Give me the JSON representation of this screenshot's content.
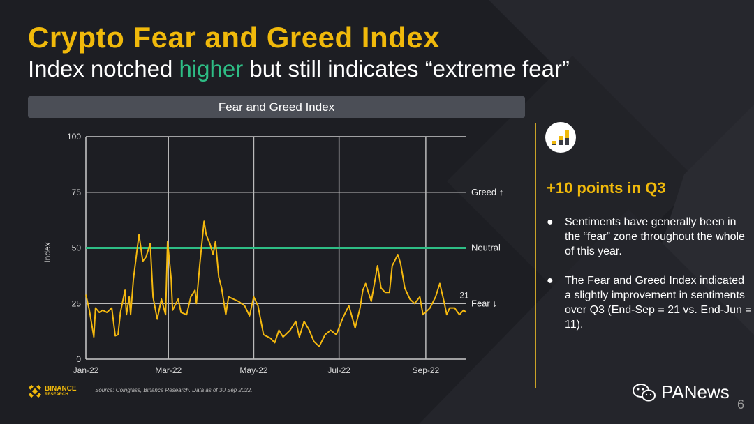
{
  "header": {
    "title": "Crypto Fear and Greed Index",
    "subtitle_pre": "Index notched ",
    "subtitle_hl": "higher",
    "subtitle_post": " but still indicates “extreme fear”"
  },
  "chart_header": "Fear and Greed Index",
  "sidebar": {
    "kpi": "+10 points in Q3",
    "bullets": [
      "Sentiments have generally been in the “fear” zone throughout the whole of this year.",
      "The Fear and Greed Index indicated a slightly improvement in sentiments over Q3 (End-Sep = 21 vs. End-Jun = 11)."
    ],
    "icon": "bar-chart-icon"
  },
  "footer": {
    "source": "Source: Coinglass, Binance Research. Data as of 30 Sep 2022.",
    "logo_top": "BINANCE",
    "logo_bottom": "RESEARCH",
    "watermark": "PANews",
    "page": "6"
  },
  "colors": {
    "accent": "#f0b90b",
    "green": "#2ebd85",
    "line": "#f5b90f"
  },
  "chart_data": {
    "type": "line",
    "title": "Fear and Greed Index",
    "xlabel": "",
    "ylabel": "Index",
    "ylim": [
      0,
      100
    ],
    "yticks": [
      "0",
      "25",
      "50",
      "75",
      "100"
    ],
    "xlim_days": [
      0,
      272
    ],
    "xticks": [
      {
        "label": "Jan-22",
        "day": 0
      },
      {
        "label": "Mar-22",
        "day": 59
      },
      {
        "label": "May-22",
        "day": 120
      },
      {
        "label": "Jul-22",
        "day": 181
      },
      {
        "label": "Sep-22",
        "day": 243
      }
    ],
    "reference_lines": [
      {
        "value": 75,
        "label": "Greed ↑"
      },
      {
        "value": 50,
        "label": "Neutral"
      },
      {
        "value": 25,
        "label": "Fear ↓"
      }
    ],
    "end_label": "21",
    "series": [
      {
        "name": "Fear and Greed Index",
        "points": [
          [
            0,
            29
          ],
          [
            2.5,
            22
          ],
          [
            5.7,
            10
          ],
          [
            6.9,
            23
          ],
          [
            9.6,
            21
          ],
          [
            12,
            22
          ],
          [
            15,
            21
          ],
          [
            18.5,
            23
          ],
          [
            21,
            10.5
          ],
          [
            23,
            11
          ],
          [
            24.7,
            21
          ],
          [
            28,
            31
          ],
          [
            29,
            20
          ],
          [
            31,
            28
          ],
          [
            32,
            20
          ],
          [
            34,
            36
          ],
          [
            38,
            56
          ],
          [
            40.7,
            44
          ],
          [
            43,
            46
          ],
          [
            46,
            52
          ],
          [
            48,
            28
          ],
          [
            51,
            18
          ],
          [
            54,
            27
          ],
          [
            57,
            20
          ],
          [
            58.4,
            53
          ],
          [
            61,
            36
          ],
          [
            62,
            22
          ],
          [
            66,
            27
          ],
          [
            68,
            21
          ],
          [
            72,
            20
          ],
          [
            75,
            28
          ],
          [
            78,
            31
          ],
          [
            79,
            25
          ],
          [
            81.5,
            43
          ],
          [
            84.5,
            62
          ],
          [
            86,
            56
          ],
          [
            88.6,
            52
          ],
          [
            91,
            47
          ],
          [
            92.7,
            53
          ],
          [
            95,
            37
          ],
          [
            97,
            32
          ],
          [
            100,
            20
          ],
          [
            102,
            28
          ],
          [
            105.5,
            27
          ],
          [
            109,
            26
          ],
          [
            113.5,
            24
          ],
          [
            117,
            19.5
          ],
          [
            120,
            28
          ],
          [
            123,
            24
          ],
          [
            127,
            11
          ],
          [
            132,
            9.4
          ],
          [
            135,
            7.4
          ],
          [
            138,
            13
          ],
          [
            141,
            10
          ],
          [
            146,
            13
          ],
          [
            150,
            17
          ],
          [
            152.6,
            10
          ],
          [
            156,
            17
          ],
          [
            159.7,
            13
          ],
          [
            163,
            8
          ],
          [
            166.8,
            5.7
          ],
          [
            171,
            11
          ],
          [
            175,
            13
          ],
          [
            179,
            11
          ],
          [
            184,
            19
          ],
          [
            188,
            24
          ],
          [
            192.5,
            14
          ],
          [
            196,
            23
          ],
          [
            198,
            31
          ],
          [
            200,
            34
          ],
          [
            202,
            30
          ],
          [
            204,
            26
          ],
          [
            208.5,
            42
          ],
          [
            211,
            32
          ],
          [
            214,
            30
          ],
          [
            217,
            30
          ],
          [
            219,
            42
          ],
          [
            223,
            47
          ],
          [
            225,
            43
          ],
          [
            228,
            32
          ],
          [
            231.6,
            27
          ],
          [
            235,
            25
          ],
          [
            238.7,
            28
          ],
          [
            241,
            20
          ],
          [
            246,
            23
          ],
          [
            250,
            28
          ],
          [
            253,
            34
          ],
          [
            256,
            26
          ],
          [
            258,
            20
          ],
          [
            260,
            23
          ],
          [
            263.6,
            23
          ],
          [
            267,
            20
          ],
          [
            270,
            22
          ],
          [
            272,
            21
          ]
        ]
      }
    ]
  }
}
